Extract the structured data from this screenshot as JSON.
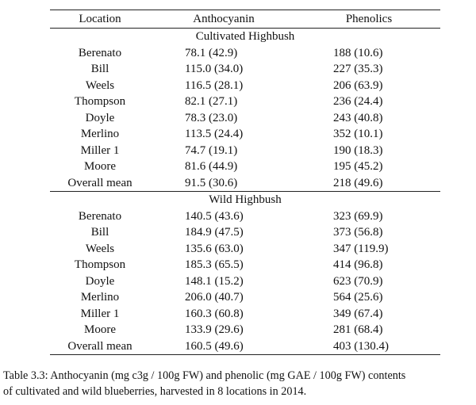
{
  "table": {
    "headers": [
      "Location",
      "Anthocyanin",
      "Phenolics"
    ],
    "groups": [
      {
        "title": "Cultivated  Highbush",
        "rows": [
          [
            "Berenato",
            "78.1 (42.9)",
            "188 (10.6)"
          ],
          [
            "Bill",
            "115.0 (34.0)",
            "227 (35.3)"
          ],
          [
            "Weels",
            "116.5 (28.1)",
            "206 (63.9)"
          ],
          [
            "Thompson",
            "82.1 (27.1)",
            "236 (24.4)"
          ],
          [
            "Doyle",
            "78.3 (23.0)",
            "243 (40.8)"
          ],
          [
            "Merlino",
            "113.5 (24.4)",
            "352 (10.1)"
          ],
          [
            "Miller  1",
            "74.7 (19.1)",
            "190 (18.3)"
          ],
          [
            "Moore",
            "81.6 (44.9)",
            "195 (45.2)"
          ],
          [
            "Overall mean",
            "91.5 (30.6)",
            "218 (49.6)"
          ]
        ]
      },
      {
        "title": "Wild Highbush",
        "rows": [
          [
            "Berenato",
            "140.5 (43.6)",
            "323 (69.9)"
          ],
          [
            "Bill",
            "184.9 (47.5)",
            "373 (56.8)"
          ],
          [
            "Weels",
            "135.6 (63.0)",
            "347 (119.9)"
          ],
          [
            "Thompson",
            "185.3 (65.5)",
            "414 (96.8)"
          ],
          [
            "Doyle",
            "148.1 (15.2)",
            "623 (70.9)"
          ],
          [
            "Merlino",
            "206.0 (40.7)",
            "564 (25.6)"
          ],
          [
            "Miller  1",
            "160.3 (60.8)",
            "349 (67.4)"
          ],
          [
            "Moore",
            "133.9 (29.6)",
            "281 (68.4)"
          ],
          [
            "Overall mean",
            "160.5 (49.6)",
            "403 (130.4)"
          ]
        ]
      }
    ]
  },
  "caption": {
    "line1": "Table 3.3: Anthocyanin  (mg c3g / 100g FW) and phenolic  (mg GAE / 100g FW) contents",
    "line2": "of cultivated  and wild blueberries,  harvested in 8 locations  in 2014."
  }
}
